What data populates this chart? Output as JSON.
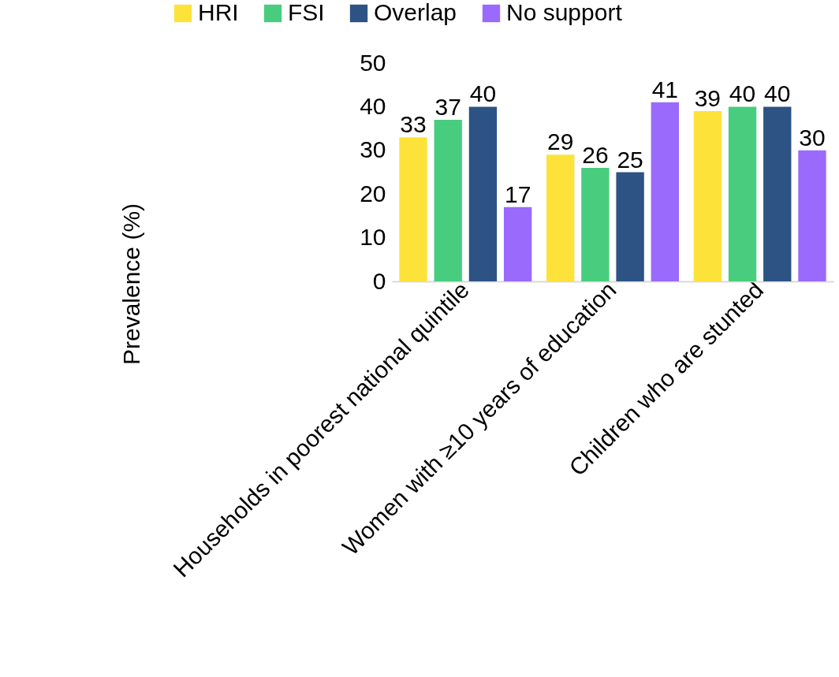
{
  "chart_data": {
    "type": "bar",
    "ylabel": "Prevalence (%)",
    "categories": [
      "Households in poorest national quintile",
      "Women with ≥10 years of education",
      "Children who are stunted"
    ],
    "series": [
      {
        "name": "HRI",
        "color": "#fde23a",
        "values": [
          33,
          29,
          39
        ]
      },
      {
        "name": "FSI",
        "color": "#48cd7e",
        "values": [
          37,
          26,
          40
        ]
      },
      {
        "name": "Overlap",
        "color": "#2c5383",
        "values": [
          40,
          25,
          40
        ]
      },
      {
        "name": "No support",
        "color": "#9a6afc",
        "values": [
          17,
          41,
          30
        ]
      }
    ],
    "ylim": [
      0,
      50
    ],
    "yticks": [
      0,
      10,
      20,
      30,
      40,
      50
    ],
    "grid": false,
    "legend": "top",
    "data_labels": true
  }
}
